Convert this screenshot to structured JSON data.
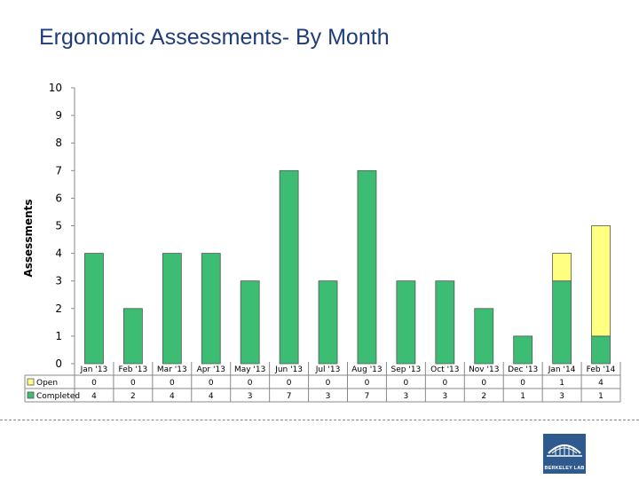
{
  "page": {
    "title": "Ergonomic Assessments- By Month"
  },
  "logo": {
    "text": "BERKELEY LAB"
  },
  "colors": {
    "completed": "#3dbd74",
    "open": "#ffff80",
    "axis": "#888888",
    "title": "#1f3d7a"
  },
  "chart_data": {
    "type": "bar",
    "stacked": true,
    "ylabel": "Assessments",
    "xlabel": "",
    "ylim": [
      0,
      10
    ],
    "yticks": [
      0,
      1,
      2,
      3,
      4,
      5,
      6,
      7,
      8,
      9,
      10
    ],
    "grid": false,
    "legend": "data-table-left",
    "categories": [
      "Jan '13",
      "Feb '13",
      "Mar '13",
      "Apr '13",
      "May '13",
      "Jun '13",
      "Jul '13",
      "Aug '13",
      "Sep '13",
      "Oct '13",
      "Nov '13",
      "Dec '13",
      "Jan '14",
      "Feb '14"
    ],
    "series": [
      {
        "name": "Open",
        "color": "#ffff80",
        "values": [
          0,
          0,
          0,
          0,
          0,
          0,
          0,
          0,
          0,
          0,
          0,
          0,
          1,
          4
        ]
      },
      {
        "name": "Completed",
        "color": "#3dbd74",
        "values": [
          4,
          2,
          4,
          4,
          3,
          7,
          3,
          7,
          3,
          3,
          2,
          1,
          3,
          1
        ]
      }
    ]
  }
}
